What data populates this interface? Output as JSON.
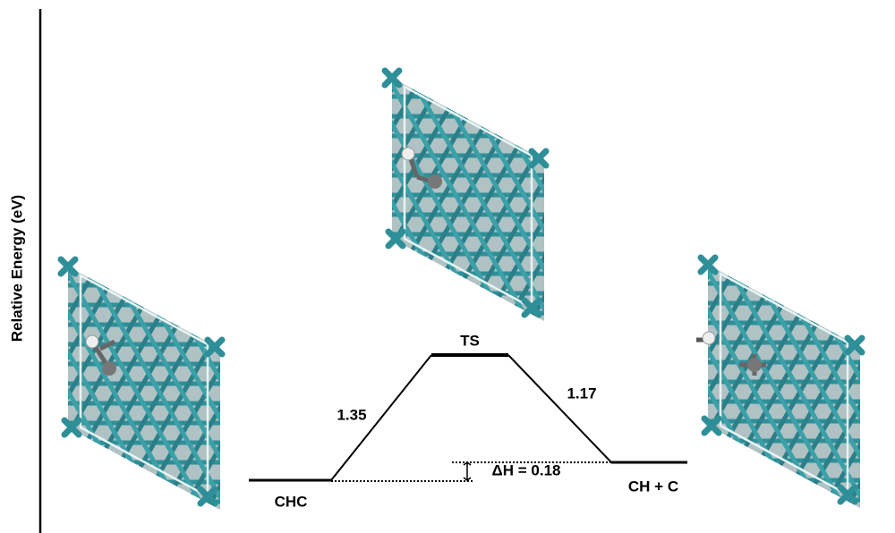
{
  "axis_label": "Relative Energy (eV)",
  "states": [
    {
      "label": "CHC"
    },
    {
      "label": "TS"
    },
    {
      "label": "CH + C"
    }
  ],
  "barriers": [
    "1.35",
    "1.17"
  ],
  "reaction_enthalpy": "ΔH = 0.18"
}
